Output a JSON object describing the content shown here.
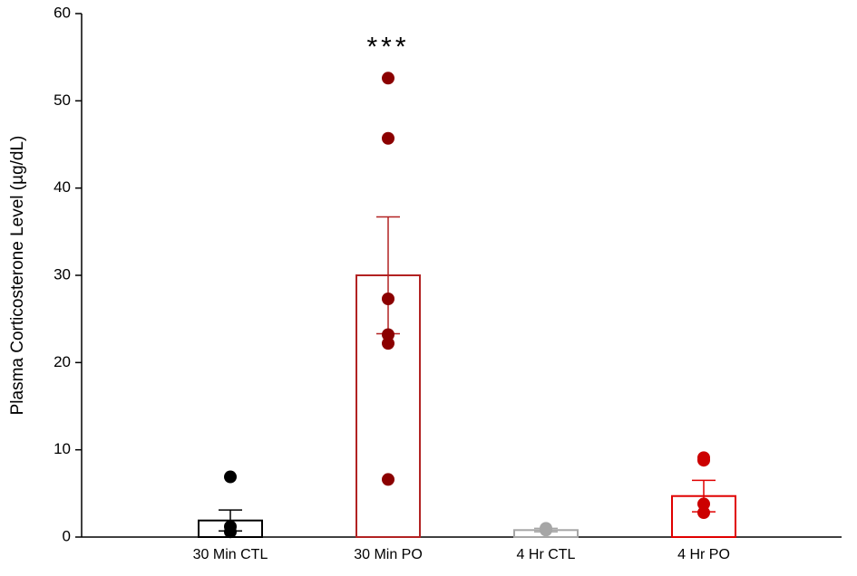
{
  "chart_data": {
    "type": "bar",
    "ylabel": "Plasma Corticosterone Level (µg/dL)",
    "annotation": "***",
    "annotation_y": 56,
    "annotation_category": 1,
    "categories": [
      "30 Min CTL",
      "30 Min PO",
      "4 Hr CTL",
      "4 Hr PO"
    ],
    "values": [
      1.9,
      30,
      0.8,
      4.7
    ],
    "errors": [
      1.2,
      6.7,
      0.2,
      1.8
    ],
    "points": [
      [
        6.9,
        1.2,
        0.6
      ],
      [
        52.6,
        45.7,
        27.3,
        23.2,
        22.2,
        6.6
      ],
      [
        1.0,
        0.8
      ],
      [
        9.1,
        8.8,
        3.8,
        2.8
      ]
    ],
    "colors": [
      "#000000",
      "#b22222",
      "#a6a6a6",
      "#e00000"
    ],
    "point_colors": [
      "#000000",
      "#8b0000",
      "#a6a6a6",
      "#cc0000"
    ],
    "ylim": [
      0,
      60
    ],
    "yticks": [
      0,
      10,
      20,
      30,
      40,
      50,
      60
    ]
  }
}
